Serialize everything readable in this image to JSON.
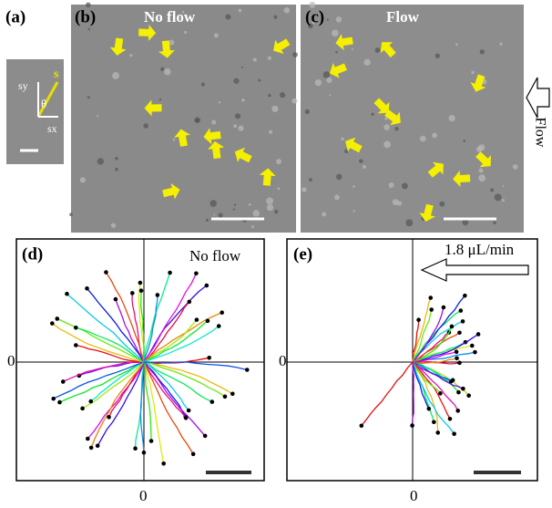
{
  "panel_a": {
    "label": "(a)",
    "vector_label": "s",
    "y_axis_label": "sy",
    "x_axis_label": "sx",
    "angle_label": "θ"
  },
  "panel_b": {
    "label": "(b)",
    "title": "No flow"
  },
  "panel_c": {
    "label": "(c)",
    "title": "Flow",
    "side_label": "Flow"
  },
  "panel_d": {
    "label": "(d)",
    "title": "No flow",
    "y_zero": "0",
    "x_zero": "0"
  },
  "panel_e": {
    "label": "(e)",
    "title": "1.8 μL/min",
    "y_zero": "0",
    "x_zero": "0"
  }
}
